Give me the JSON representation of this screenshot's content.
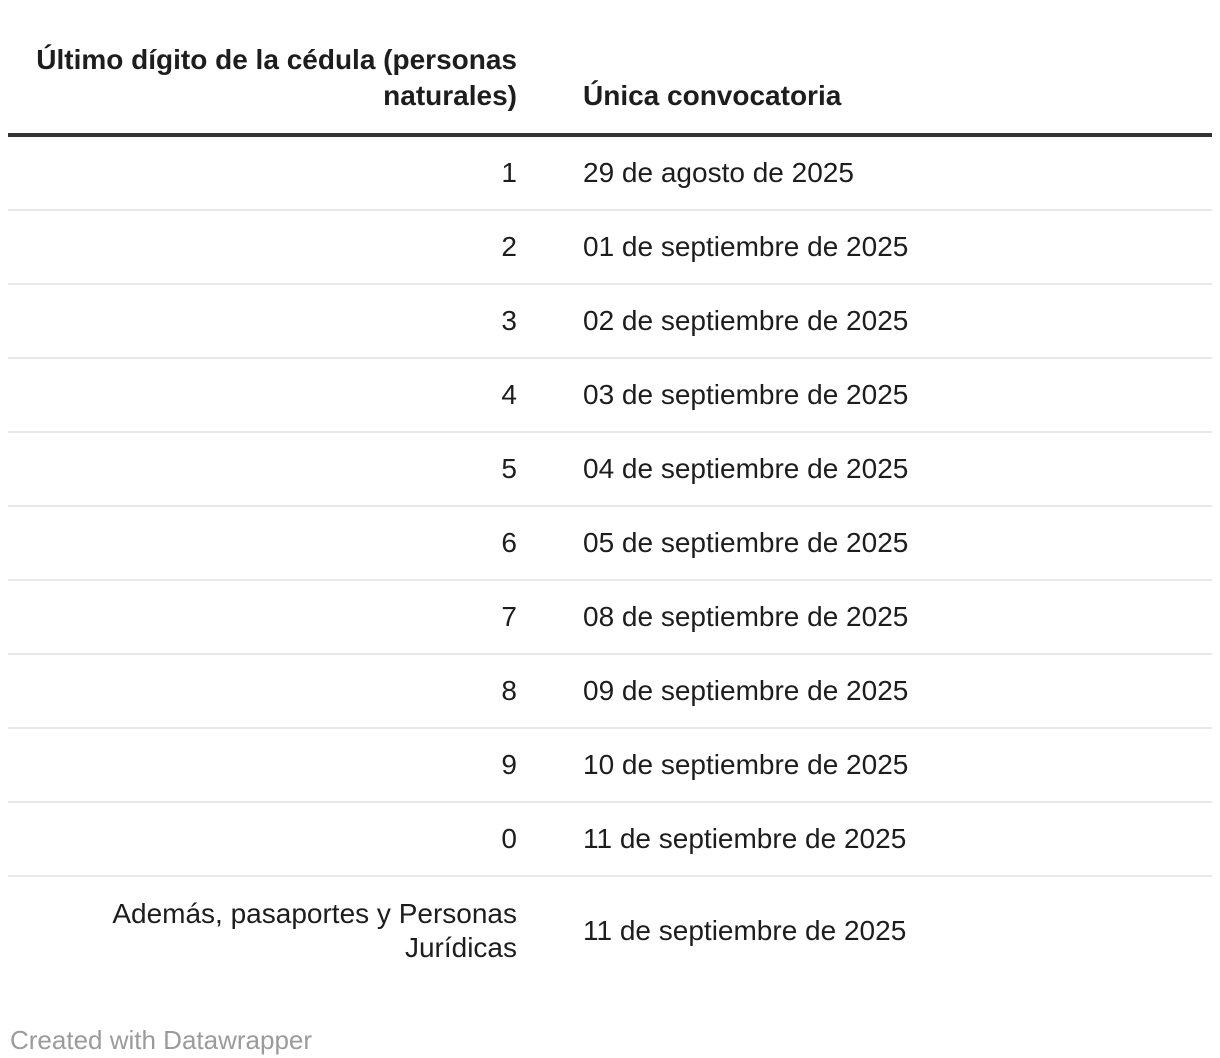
{
  "chart_data": {
    "type": "table",
    "columns": [
      "Último dígito de la cédula (personas naturales)",
      "Única convocatoria"
    ],
    "rows": [
      [
        "1",
        "29 de agosto de 2025"
      ],
      [
        "2",
        "01 de septiembre de 2025"
      ],
      [
        "3",
        "02 de septiembre de 2025"
      ],
      [
        "4",
        "03 de septiembre de 2025"
      ],
      [
        "5",
        "04 de septiembre de 2025"
      ],
      [
        "6",
        "05 de septiembre de 2025"
      ],
      [
        "7",
        "08 de septiembre de 2025"
      ],
      [
        "8",
        "09 de septiembre de 2025"
      ],
      [
        "9",
        "10 de septiembre de 2025"
      ],
      [
        "0",
        "11 de septiembre de 2025"
      ],
      [
        "Además, pasaportes y Personas Jurídicas",
        "11 de septiembre de 2025"
      ]
    ],
    "layout_hints": {
      "col1_align": "right",
      "col2_align": "left",
      "header_rule": "thick",
      "row_dividers": true,
      "bottom_border": false
    }
  },
  "footer": {
    "credit": "Created with Datawrapper"
  },
  "colors": {
    "background": "#ffffff",
    "text": "#1d1d1d",
    "header_rule": "#333333",
    "row_divider": "#e8e8e8",
    "credit_text": "#9b9b9b"
  }
}
